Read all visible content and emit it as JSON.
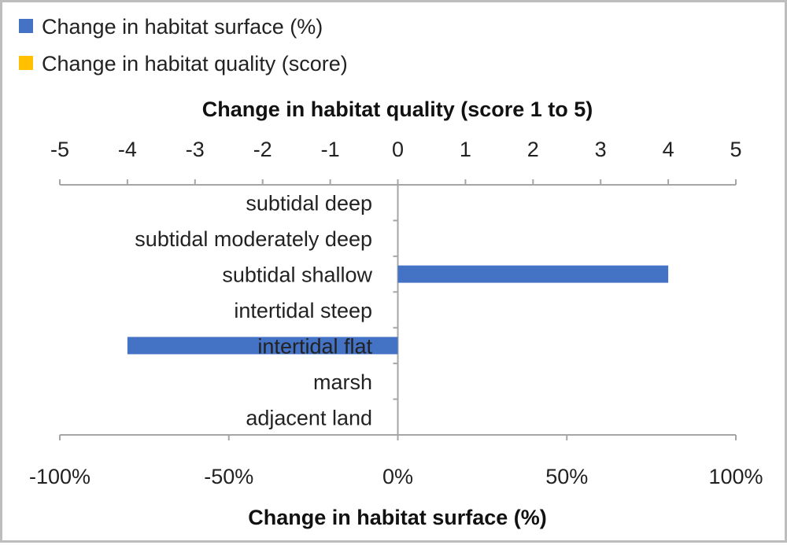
{
  "chart_data": {
    "type": "bar",
    "orientation": "horizontal",
    "categories": [
      "subtidal deep",
      "subtidal moderately deep",
      "subtidal shallow",
      "intertidal steep",
      "intertidal flat",
      "marsh",
      "adjacent land"
    ],
    "series": [
      {
        "name": "Change in habitat surface (%)",
        "color": "#4472C4",
        "axis": "bottom",
        "values": [
          0,
          0,
          80,
          0,
          -80,
          0,
          0
        ]
      },
      {
        "name": "Change in habitat quality (score)",
        "color": "#FFC000",
        "axis": "top",
        "values": [
          0,
          0,
          0,
          0,
          0,
          0,
          0
        ]
      }
    ],
    "top_axis": {
      "title": "Change in habitat quality (score 1 to 5)",
      "range": [
        -5,
        5
      ],
      "ticks": [
        "-5",
        "-4",
        "-3",
        "-2",
        "-1",
        "0",
        "1",
        "2",
        "3",
        "4",
        "5"
      ]
    },
    "bottom_axis": {
      "title": "Change in habitat surface (%)",
      "range": [
        -100,
        100
      ],
      "ticks": [
        "-100%",
        "-50%",
        "0%",
        "50%",
        "100%"
      ]
    },
    "legend_position": "top-left",
    "grid": false
  }
}
